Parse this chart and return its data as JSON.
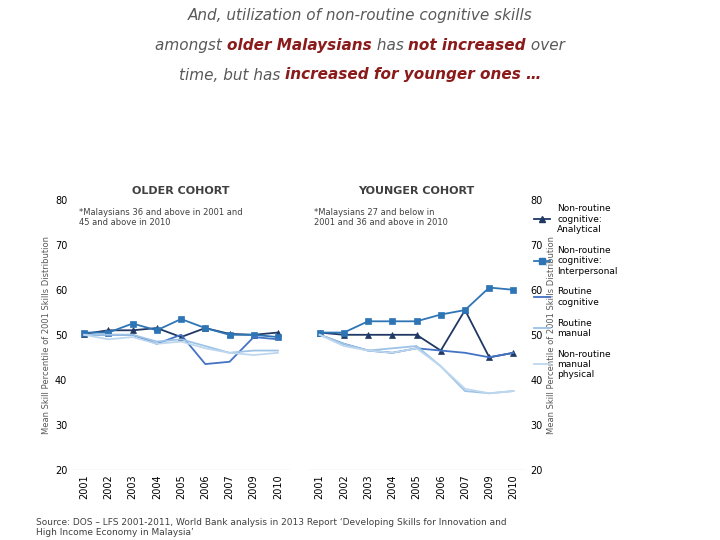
{
  "years": [
    2001,
    2002,
    2003,
    2004,
    2005,
    2006,
    2007,
    2009,
    2010
  ],
  "older_cohort": {
    "title": "OLDER COHORT",
    "note": "*Malaysians 36 and above in 2001 and\n45 and above in 2010",
    "series": [
      {
        "key": "non_routine_analytical",
        "color": "#1F3864",
        "marker": "^",
        "values": [
          50.2,
          51.0,
          51.0,
          51.5,
          49.5,
          51.5,
          50.2,
          50.0,
          50.5
        ]
      },
      {
        "key": "non_routine_interpersonal",
        "color": "#2E75B6",
        "marker": "s",
        "values": [
          50.5,
          50.5,
          52.5,
          51.0,
          53.5,
          51.5,
          50.0,
          50.0,
          49.5
        ]
      },
      {
        "key": "routine_cognitive",
        "color": "#4472C4",
        "marker": null,
        "values": [
          50.0,
          50.0,
          50.0,
          48.0,
          50.0,
          43.5,
          44.0,
          49.5,
          49.0
        ]
      },
      {
        "key": "routine_manual",
        "color": "#9DC3E6",
        "marker": null,
        "values": [
          50.0,
          50.0,
          50.0,
          48.5,
          49.0,
          47.5,
          46.0,
          46.5,
          46.5
        ]
      },
      {
        "key": "non_routine_manual_physical",
        "color": "#BDD7EE",
        "marker": null,
        "values": [
          50.0,
          49.0,
          49.5,
          48.0,
          48.5,
          47.0,
          46.0,
          45.5,
          46.0
        ]
      }
    ]
  },
  "younger_cohort": {
    "title": "YOUNGER COHORT",
    "note": "*Malaysians 27 and below in\n2001 and 36 and above in 2010",
    "series": [
      {
        "key": "non_routine_analytical",
        "color": "#1F3864",
        "marker": "^",
        "values": [
          50.5,
          50.0,
          50.0,
          50.0,
          50.0,
          46.5,
          55.5,
          45.0,
          46.0
        ]
      },
      {
        "key": "non_routine_interpersonal",
        "color": "#2E75B6",
        "marker": "s",
        "values": [
          50.5,
          50.5,
          53.0,
          53.0,
          53.0,
          54.5,
          55.5,
          60.5,
          60.0
        ]
      },
      {
        "key": "routine_cognitive",
        "color": "#4472C4",
        "marker": null,
        "values": [
          50.0,
          48.0,
          46.5,
          46.0,
          47.0,
          46.5,
          46.0,
          45.0,
          46.0
        ]
      },
      {
        "key": "routine_manual",
        "color": "#9DC3E6",
        "marker": null,
        "values": [
          50.0,
          48.0,
          46.5,
          47.0,
          47.5,
          43.0,
          37.5,
          37.0,
          37.5
        ]
      },
      {
        "key": "non_routine_manual_physical",
        "color": "#BDD7EE",
        "marker": null,
        "values": [
          50.0,
          47.5,
          46.5,
          46.0,
          47.0,
          43.0,
          38.0,
          37.0,
          37.5
        ]
      }
    ]
  },
  "legend_labels": [
    "Non-routine\ncognitive:\nAnalytical",
    "Non-routine\ncognitive:\nInterpersonal",
    "Routine\ncognitive",
    "Routine\nmanual",
    "Non-routine\nmanual\nphysical"
  ],
  "ylabel": "Mean Skill Percentile of 2001 Skills Distribution",
  "ylim": [
    20,
    80
  ],
  "yticks": [
    20,
    30,
    40,
    50,
    60,
    70,
    80
  ],
  "title_line1": "And, utilization of non-routine cognitive skills",
  "title_line2_parts": [
    [
      "amongst ",
      "#595959",
      "normal"
    ],
    [
      "older Malaysians",
      "#8B1A1A",
      "bold"
    ],
    [
      " has ",
      "#595959",
      "normal"
    ],
    [
      "not increased",
      "#8B1A1A",
      "bold"
    ],
    [
      " over",
      "#595959",
      "normal"
    ]
  ],
  "title_line3_parts": [
    [
      "time, but has ",
      "#595959",
      "normal"
    ],
    [
      "increased for younger ones …",
      "#8B1A1A",
      "bold"
    ]
  ],
  "title_color": "#595959",
  "source_text": "Source: DOS – LFS 2001-2011, World Bank analysis in 2013 Report ‘Developing Skills for Innovation and\nHigh Income Economy in Malaysia’"
}
